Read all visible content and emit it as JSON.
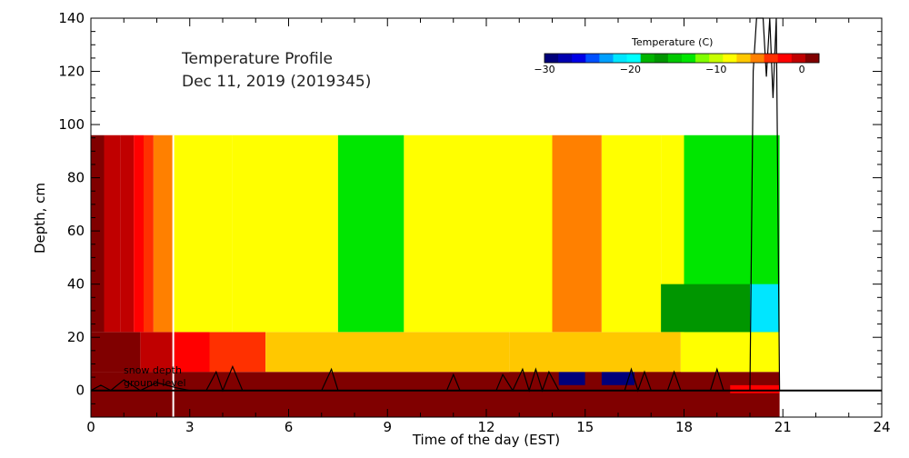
{
  "chart_data": {
    "type": "heatmap",
    "title": "Temperature Profile",
    "subtitle": "Dec 11, 2019 (2019345)",
    "xlabel": "Time of the day (EST)",
    "ylabel": "Depth, cm",
    "xlim": [
      0,
      24
    ],
    "ylim": [
      -10,
      140
    ],
    "x_ticks": [
      "0",
      "3",
      "6",
      "9",
      "12",
      "15",
      "18",
      "21",
      "24"
    ],
    "y_ticks": [
      "0",
      "20",
      "40",
      "60",
      "80",
      "100",
      "120",
      "140"
    ],
    "annotations": [
      "snow depth",
      "ground level"
    ],
    "grid": false,
    "colorbar": {
      "title": "Temperature (C)",
      "min": -30,
      "max": 2,
      "ticks": [
        "−30",
        "−20",
        "−10",
        "0"
      ],
      "colors": [
        "#00007a",
        "#0000b0",
        "#0000e6",
        "#0050ff",
        "#00a0ff",
        "#00e6ff",
        "#00ffff",
        "#00b400",
        "#009600",
        "#00c800",
        "#00e600",
        "#80ff00",
        "#c8ff00",
        "#ffff00",
        "#ffc800",
        "#ff8000",
        "#ff3000",
        "#ff0000",
        "#c00000",
        "#800000"
      ]
    },
    "time_range_hours": [
      0,
      20.9
    ],
    "air_bands": [
      {
        "depth_range": [
          22,
          96
        ],
        "columns": [
          {
            "x": [
              0.0,
              0.4
            ],
            "temp": 1.0
          },
          {
            "x": [
              0.4,
              0.9
            ],
            "temp": 0.0
          },
          {
            "x": [
              0.9,
              1.3
            ],
            "temp": -1.0
          },
          {
            "x": [
              1.3,
              1.6
            ],
            "temp": -2.0
          },
          {
            "x": [
              1.6,
              1.9
            ],
            "temp": -3.0
          },
          {
            "x": [
              1.9,
              2.5
            ],
            "temp": -6.0
          },
          {
            "x": [
              2.5,
              4.3
            ],
            "temp": -8.0
          },
          {
            "x": [
              4.3,
              7.5
            ],
            "temp": -9.0
          },
          {
            "x": [
              7.5,
              9.5
            ],
            "temp": -13.0
          },
          {
            "x": [
              9.5,
              12.0
            ],
            "temp": -9.0
          },
          {
            "x": [
              12.0,
              14.0
            ],
            "temp": -8.0
          },
          {
            "x": [
              14.0,
              15.5
            ],
            "temp": -6.0
          },
          {
            "x": [
              15.5,
              17.3
            ],
            "temp": -8.0
          },
          {
            "x": [
              17.3,
              18.0
            ],
            "temp": -9.0
          },
          {
            "x": [
              18.0,
              20.9
            ],
            "temp": -13.0
          }
        ]
      },
      {
        "depth_range": [
          22,
          40
        ],
        "columns": [
          {
            "x": [
              17.3,
              20.0
            ],
            "temp": -17.0
          },
          {
            "x": [
              20.0,
              20.9
            ],
            "temp": -21.0
          }
        ]
      }
    ],
    "snow_bands": [
      {
        "depth_range": [
          7,
          22
        ],
        "columns": [
          {
            "x": [
              0.0,
              1.5
            ],
            "temp": 1.0
          },
          {
            "x": [
              1.5,
              2.5
            ],
            "temp": 0.0
          },
          {
            "x": [
              2.5,
              3.6
            ],
            "temp": -2.0
          },
          {
            "x": [
              3.6,
              5.3
            ],
            "temp": -4.0
          },
          {
            "x": [
              5.3,
              12.7
            ],
            "temp": -7.0
          },
          {
            "x": [
              12.7,
              17.9
            ],
            "temp": -7.0
          },
          {
            "x": [
              17.9,
              20.9
            ],
            "temp": -8.0
          }
        ]
      }
    ],
    "ground_bands": [
      {
        "depth_range": [
          -10,
          7
        ],
        "columns": [
          {
            "x": [
              0.0,
              20.9
            ],
            "temp": 1.0
          }
        ]
      },
      {
        "depth_range": [
          2,
          7
        ],
        "columns": [
          {
            "x": [
              0.0,
              4.2
            ],
            "temp": 2.0
          },
          {
            "x": [
              12.7,
              14.2
            ],
            "temp": 2.0
          },
          {
            "x": [
              14.2,
              15.0
            ],
            "temp": -30.0
          },
          {
            "x": [
              15.0,
              15.5
            ],
            "temp": 2.0
          },
          {
            "x": [
              15.5,
              16.5
            ],
            "temp": -30.0
          },
          {
            "x": [
              16.5,
              17.9
            ],
            "temp": 2.0
          }
        ]
      },
      {
        "depth_range": [
          -1,
          2
        ],
        "columns": [
          {
            "x": [
              5.1,
              19.4
            ],
            "temp": 0.5
          },
          {
            "x": [
              19.4,
              20.9
            ],
            "temp": -1.5
          }
        ]
      }
    ],
    "ground_level_depth": 0,
    "white_vertical_line_x": 2.5,
    "snow_depth_trace": {
      "x": [
        0.0,
        0.3,
        0.6,
        1.0,
        1.5,
        2.0,
        2.6,
        3.0,
        3.5,
        3.8,
        4.0,
        4.3,
        4.6,
        5.0,
        7.0,
        7.3,
        7.5,
        8.0,
        10.8,
        11.0,
        11.2,
        11.5,
        12.3,
        12.5,
        12.8,
        13.1,
        13.3,
        13.5,
        13.7,
        13.9,
        14.2,
        16.2,
        16.4,
        16.6,
        16.8,
        17.0,
        17.5,
        17.7,
        17.9,
        18.2,
        18.8,
        19.0,
        19.2,
        19.4,
        19.6,
        19.8,
        20.0,
        20.1,
        20.2,
        20.4,
        20.5,
        20.6,
        20.7,
        20.8,
        20.9
      ],
      "y": [
        0,
        2,
        0,
        4,
        0,
        3,
        1,
        0,
        0,
        7,
        0,
        9,
        0,
        0,
        0,
        8,
        0,
        0,
        0,
        6,
        0,
        0,
        0,
        6,
        0,
        8,
        0,
        8,
        0,
        7,
        0,
        0,
        8,
        0,
        7,
        0,
        0,
        7,
        0,
        0,
        0,
        8,
        0,
        0,
        0,
        0,
        0,
        120,
        145,
        145,
        118,
        145,
        110,
        145,
        0
      ]
    }
  }
}
